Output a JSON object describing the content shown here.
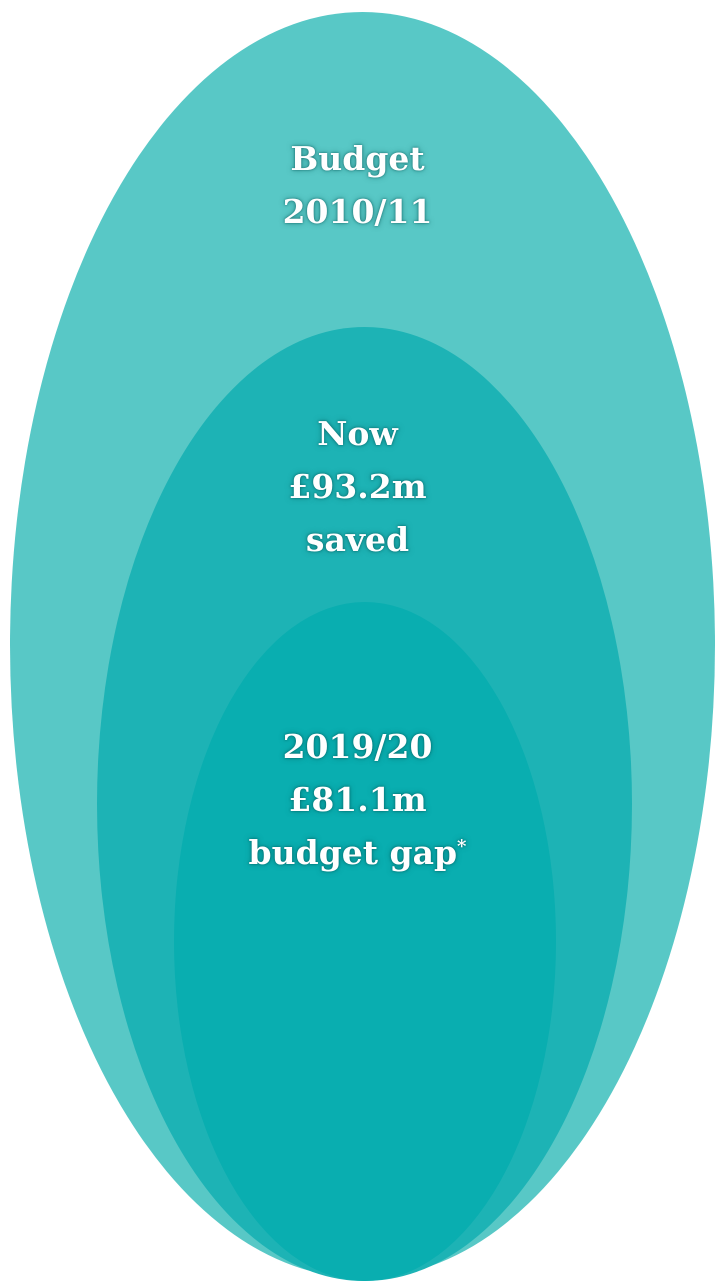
{
  "colors": {
    "outer": "#58c8c6",
    "middle": "#1db3b5",
    "inner": "#09aeb0",
    "text": "#ffffff"
  },
  "circles": {
    "outer": {
      "line1": "Budget",
      "line2": "2010/11"
    },
    "middle": {
      "line1": "Now",
      "line2": "£93.2m",
      "line3": "saved"
    },
    "inner": {
      "line1": "2019/20",
      "line2": "£81.1m",
      "line3": "budget gap",
      "footnote_marker": "*"
    }
  }
}
